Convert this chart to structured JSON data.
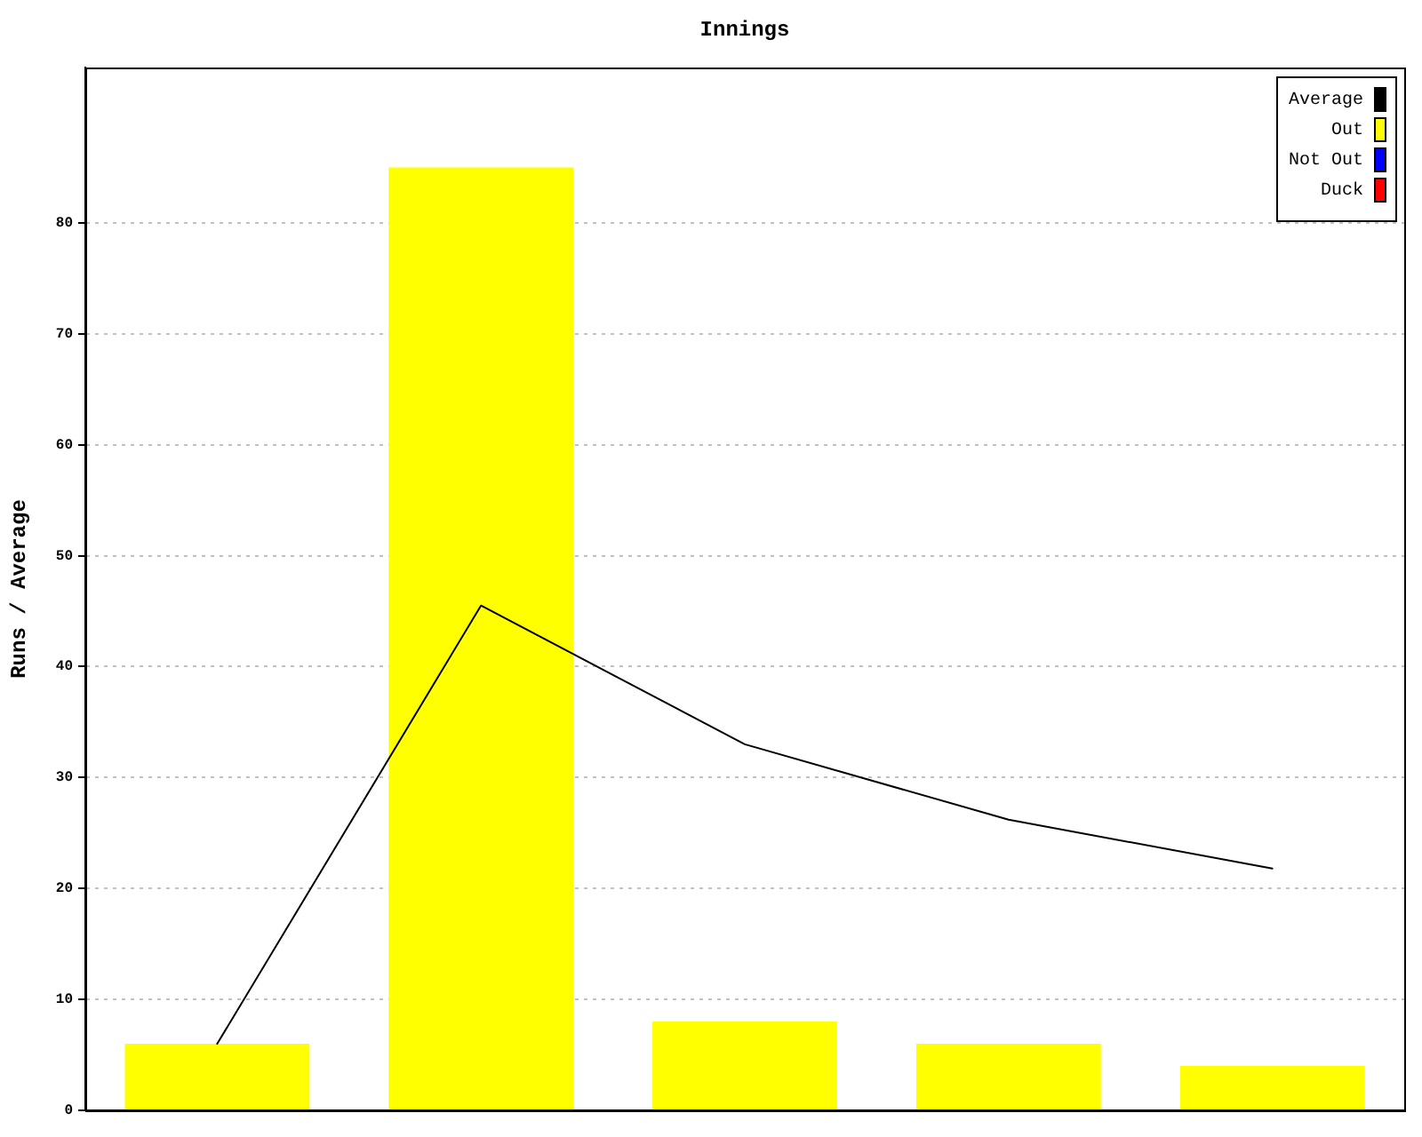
{
  "chart_data": {
    "type": "bar",
    "title": "Innings",
    "ylabel": "Runs / Average",
    "categories": [
      null,
      null,
      null,
      null,
      null
    ],
    "series": [
      {
        "name": "Average",
        "type": "line",
        "color": "#000000",
        "values": [
          6,
          45.5,
          33,
          26.2,
          21.8
        ]
      },
      {
        "name": "Out",
        "color": "#ffff00",
        "values": [
          6,
          85,
          8,
          6,
          4
        ]
      },
      {
        "name": "Not Out",
        "color": "#0000ff",
        "values": [
          null,
          null,
          null,
          null,
          null
        ]
      },
      {
        "name": "Duck",
        "color": "#ff0000",
        "values": [
          null,
          null,
          null,
          null,
          null
        ]
      }
    ],
    "stacked": true,
    "ylim": [
      0,
      94
    ],
    "yticks": [
      0,
      10,
      20,
      30,
      40,
      50,
      60,
      70,
      80
    ],
    "grid": "y",
    "legend": "top right",
    "tick_labels": "y"
  }
}
